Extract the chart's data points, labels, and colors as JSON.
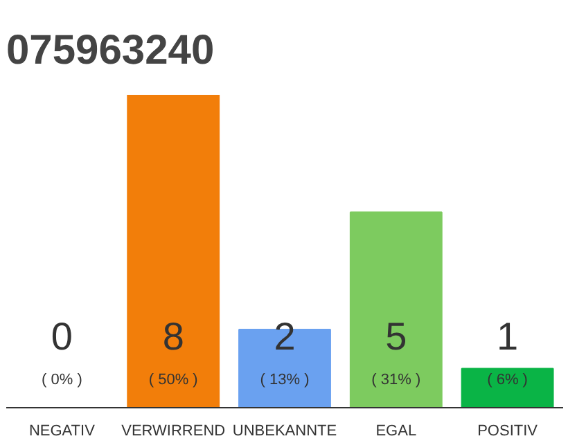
{
  "chart_data": {
    "type": "bar",
    "title": "075963240",
    "categories": [
      "NEGATIV",
      "VERWIRREND",
      "UNBEKANNTE",
      "EGAL",
      "POSITIV"
    ],
    "values": [
      0,
      8,
      2,
      5,
      1
    ],
    "colors": [
      "#bbbbbb",
      "#f27e0a",
      "#6aa1f0",
      "#7dcb5f",
      "#0ab446"
    ],
    "data_labels": true,
    "tick_labels": "x",
    "grid": false,
    "annotations": [
      "( 0% )",
      "( 50% )",
      "( 13% )",
      "( 31% )",
      "( 6% )"
    ]
  }
}
